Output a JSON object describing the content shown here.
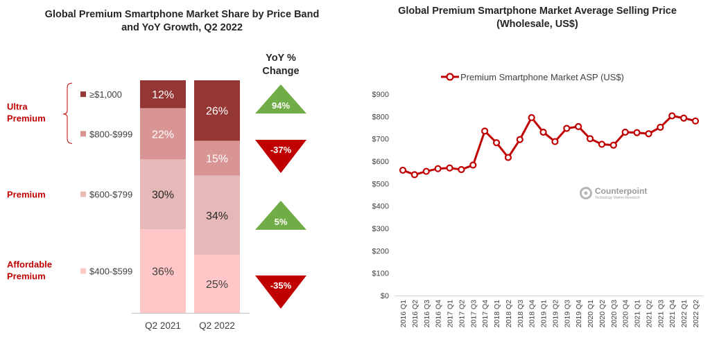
{
  "left_title": "Global Premium Smartphone Market Share by Price Band and YoY Growth, Q2 2022",
  "right_title": "Global Premium Smartphone Market Average Selling Price (Wholesale, US$)",
  "yoy_header": "YoY % Change",
  "watermark": {
    "name": "Counterpoint",
    "sub": "Technology Market Research"
  },
  "colors": {
    "band1000": "#943634",
    "band800": "#d99594",
    "band600": "#e6b9b8",
    "band400": "#ffc7c7",
    "up": "#70ad47",
    "down": "#c00000",
    "segment_label": "#c00000",
    "line": "#c00000"
  },
  "chart_data": [
    {
      "type": "bar",
      "stacked": true,
      "percent": true,
      "title": "Global Premium Smartphone Market Share by Price Band and YoY Growth, Q2 2022",
      "categories": [
        "Q2 2021",
        "Q2 2022"
      ],
      "series": [
        {
          "name": "$400-$599",
          "values": [
            36,
            25
          ],
          "labels": [
            "36%",
            "25%"
          ],
          "color": "#ffc7c7",
          "text_color": "#404040"
        },
        {
          "name": "$600-$799",
          "values": [
            30,
            34
          ],
          "labels": [
            "30%",
            "34%"
          ],
          "color": "#e6b9b8",
          "text_color": "#262626"
        },
        {
          "name": "$800-$999",
          "values": [
            22,
            15
          ],
          "labels": [
            "22%",
            "15%"
          ],
          "color": "#d99594",
          "text_color": "#ffffff"
        },
        {
          "name": "≥$1,000",
          "values": [
            12,
            26
          ],
          "labels": [
            "12%",
            "26%"
          ],
          "color": "#943634",
          "text_color": "#ffffff"
        }
      ],
      "legend_order": [
        "≥$1,000",
        "$800-$999",
        "$600-$799",
        "$400-$599"
      ],
      "segment_groups": [
        {
          "label": "Ultra Premium",
          "bands": [
            "≥$1,000",
            "$800-$999"
          ]
        },
        {
          "label": "Premium",
          "bands": [
            "$600-$799"
          ]
        },
        {
          "label": "Affordable Premium",
          "bands": [
            "$400-$599"
          ]
        }
      ],
      "yoy_change": [
        {
          "band": "≥$1,000",
          "value": 94,
          "label": "94%",
          "direction": "up"
        },
        {
          "band": "$800-$999",
          "value": -37,
          "label": "-37%",
          "direction": "down"
        },
        {
          "band": "$600-$799",
          "value": 5,
          "label": "5%",
          "direction": "up"
        },
        {
          "band": "$400-$599",
          "value": -35,
          "label": "-35%",
          "direction": "down"
        }
      ]
    },
    {
      "type": "line",
      "title": "Global Premium Smartphone Market Average Selling Price (Wholesale, US$)",
      "series_name": "Premium Smartphone Market ASP (US$)",
      "x": [
        "2016 Q1",
        "2016 Q2",
        "2016 Q3",
        "2016 Q4",
        "2017 Q1",
        "2017 Q2",
        "2017 Q3",
        "2017 Q4",
        "2018 Q1",
        "2018 Q2",
        "2018 Q3",
        "2018 Q4",
        "2019 Q1",
        "2019 Q2",
        "2019 Q3",
        "2019 Q4",
        "2020 Q1",
        "2020 Q2",
        "2020 Q3",
        "2020 Q4",
        "2021 Q1",
        "2021 Q2",
        "2021 Q3",
        "2021 Q4",
        "2022 Q1",
        "2022 Q2"
      ],
      "values": [
        560,
        540,
        555,
        567,
        570,
        563,
        583,
        735,
        683,
        617,
        697,
        795,
        730,
        688,
        747,
        755,
        701,
        676,
        672,
        730,
        728,
        723,
        752,
        803,
        793,
        780
      ],
      "y_ticks": [
        "$0",
        "$100",
        "$200",
        "$300",
        "$400",
        "$500",
        "$600",
        "$700",
        "$800",
        "$900"
      ],
      "ylim": [
        0,
        900
      ],
      "grid": false,
      "legend_position": "top"
    }
  ]
}
